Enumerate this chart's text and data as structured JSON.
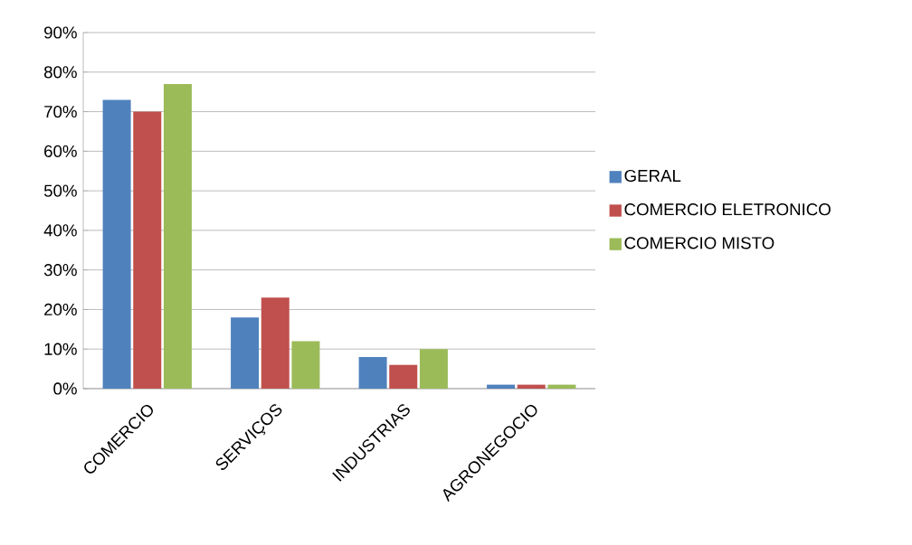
{
  "chart_data": {
    "type": "bar",
    "categories": [
      "COMERCIO",
      "SERVIÇOS",
      "INDUSTRIAS",
      "AGRONEGOCIO"
    ],
    "series": [
      {
        "name": "GERAL",
        "color": "#4f81bd",
        "values": [
          73,
          18,
          8,
          1
        ]
      },
      {
        "name": "COMERCIO ELETRONICO",
        "color": "#c0504d",
        "values": [
          70,
          23,
          6,
          1
        ]
      },
      {
        "name": "COMERCIO MISTO",
        "color": "#9bbb59",
        "values": [
          77,
          12,
          10,
          1
        ]
      }
    ],
    "ylim": [
      0,
      90
    ],
    "yticks": [
      {
        "value": 0,
        "label": "0%"
      },
      {
        "value": 10,
        "label": "10%"
      },
      {
        "value": 20,
        "label": "20%"
      },
      {
        "value": 30,
        "label": "30%"
      },
      {
        "value": 40,
        "label": "40%"
      },
      {
        "value": 50,
        "label": "50%"
      },
      {
        "value": 60,
        "label": "60%"
      },
      {
        "value": 70,
        "label": "70%"
      },
      {
        "value": 80,
        "label": "80%"
      },
      {
        "value": 90,
        "label": "90%"
      }
    ],
    "grid": "y",
    "legend": "right"
  }
}
